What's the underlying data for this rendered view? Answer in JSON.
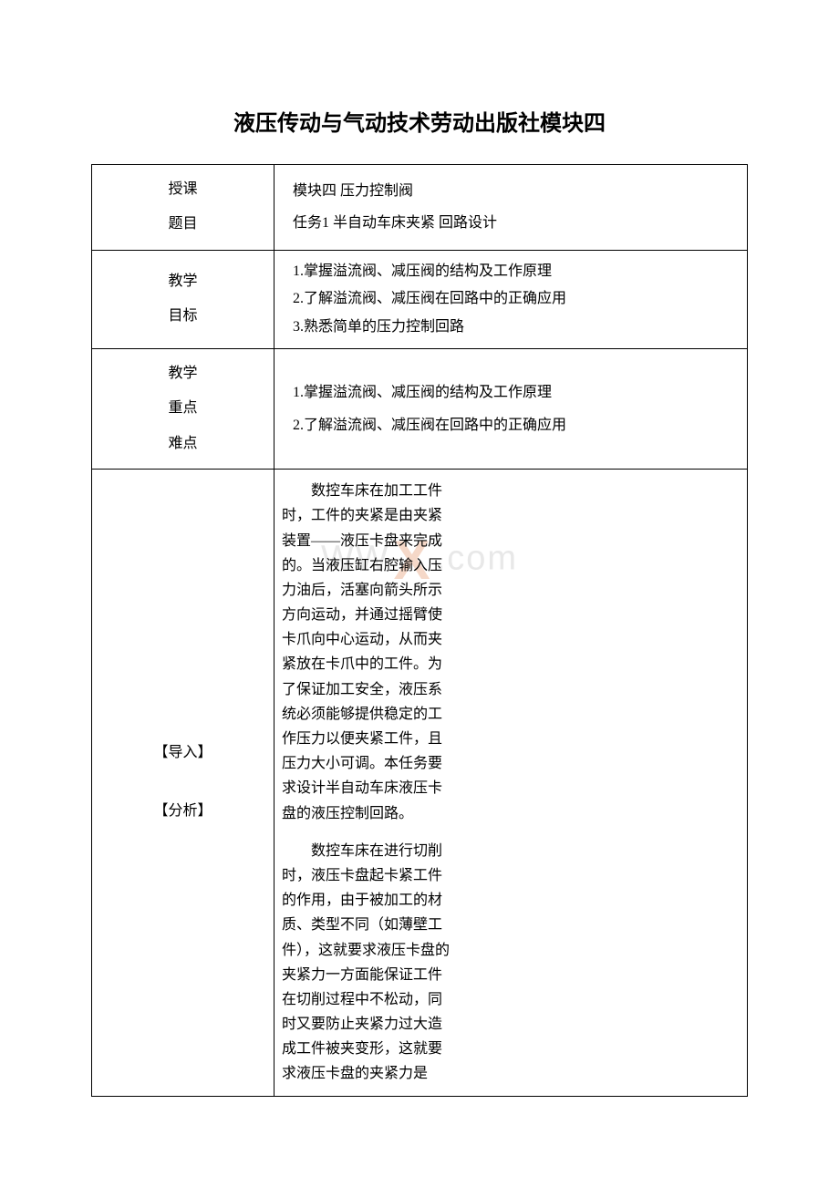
{
  "title": "液压传动与气动技术劳动出版社模块四",
  "watermark": {
    "left": "WW",
    "right": ".com"
  },
  "rows": {
    "r1": {
      "label": "授课\n题目",
      "content_line1": "模块四 压力控制阀",
      "content_line2": "任务1 半自动车床夹紧 回路设计"
    },
    "r2": {
      "label": "教学\n目标",
      "content_line1": "1.掌握溢流阀、减压阀的结构及工作原理",
      "content_line2": "2.了解溢流阀、减压阀在回路中的正确应用",
      "content_line3": "3.熟悉简单的压力控制回路"
    },
    "r3": {
      "label": "教学\n重点\n难点",
      "content_line1": "1.掌握溢流阀、减压阀的结构及工作原理",
      "content_line2": "2.了解溢流阀、减压阀在回路中的正确应用"
    },
    "r4": {
      "label1": "【导入】",
      "label2": "【分析】",
      "para1": "数控车床在加工工件时，工件的夹紧是由夹紧装置——液压卡盘来完成的。当液压缸右腔输入压力油后，活塞向箭头所示方向运动，并通过摇臂使卡爪向中心运动，从而夹紧放在卡爪中的工件。为了保证加工安全，液压系统必须能够提供稳定的工作压力以便夹紧工件，且压力大小可调。本任务要求设计半自动车床液压卡盘的液压控制回路。",
      "para2": "数控车床在进行切削时，液压卡盘起卡紧工件的作用，由于被加工的材质、类型不同（如薄壁工件），这就要求液压卡盘的夹紧力一方面能保证工件在切削过程中不松动，同时又要防止夹紧力过大造成工件被夹变形，这就要求液压卡盘的夹紧力是"
    }
  },
  "styling": {
    "background_color": "#ffffff",
    "border_color": "#000000",
    "text_color": "#000000",
    "watermark_color": "#e8e8e8",
    "watermark_x_color": "#f5d8c8",
    "title_fontsize": 24,
    "body_fontsize": 16,
    "col1_width": 200,
    "body_text_width": 190
  }
}
